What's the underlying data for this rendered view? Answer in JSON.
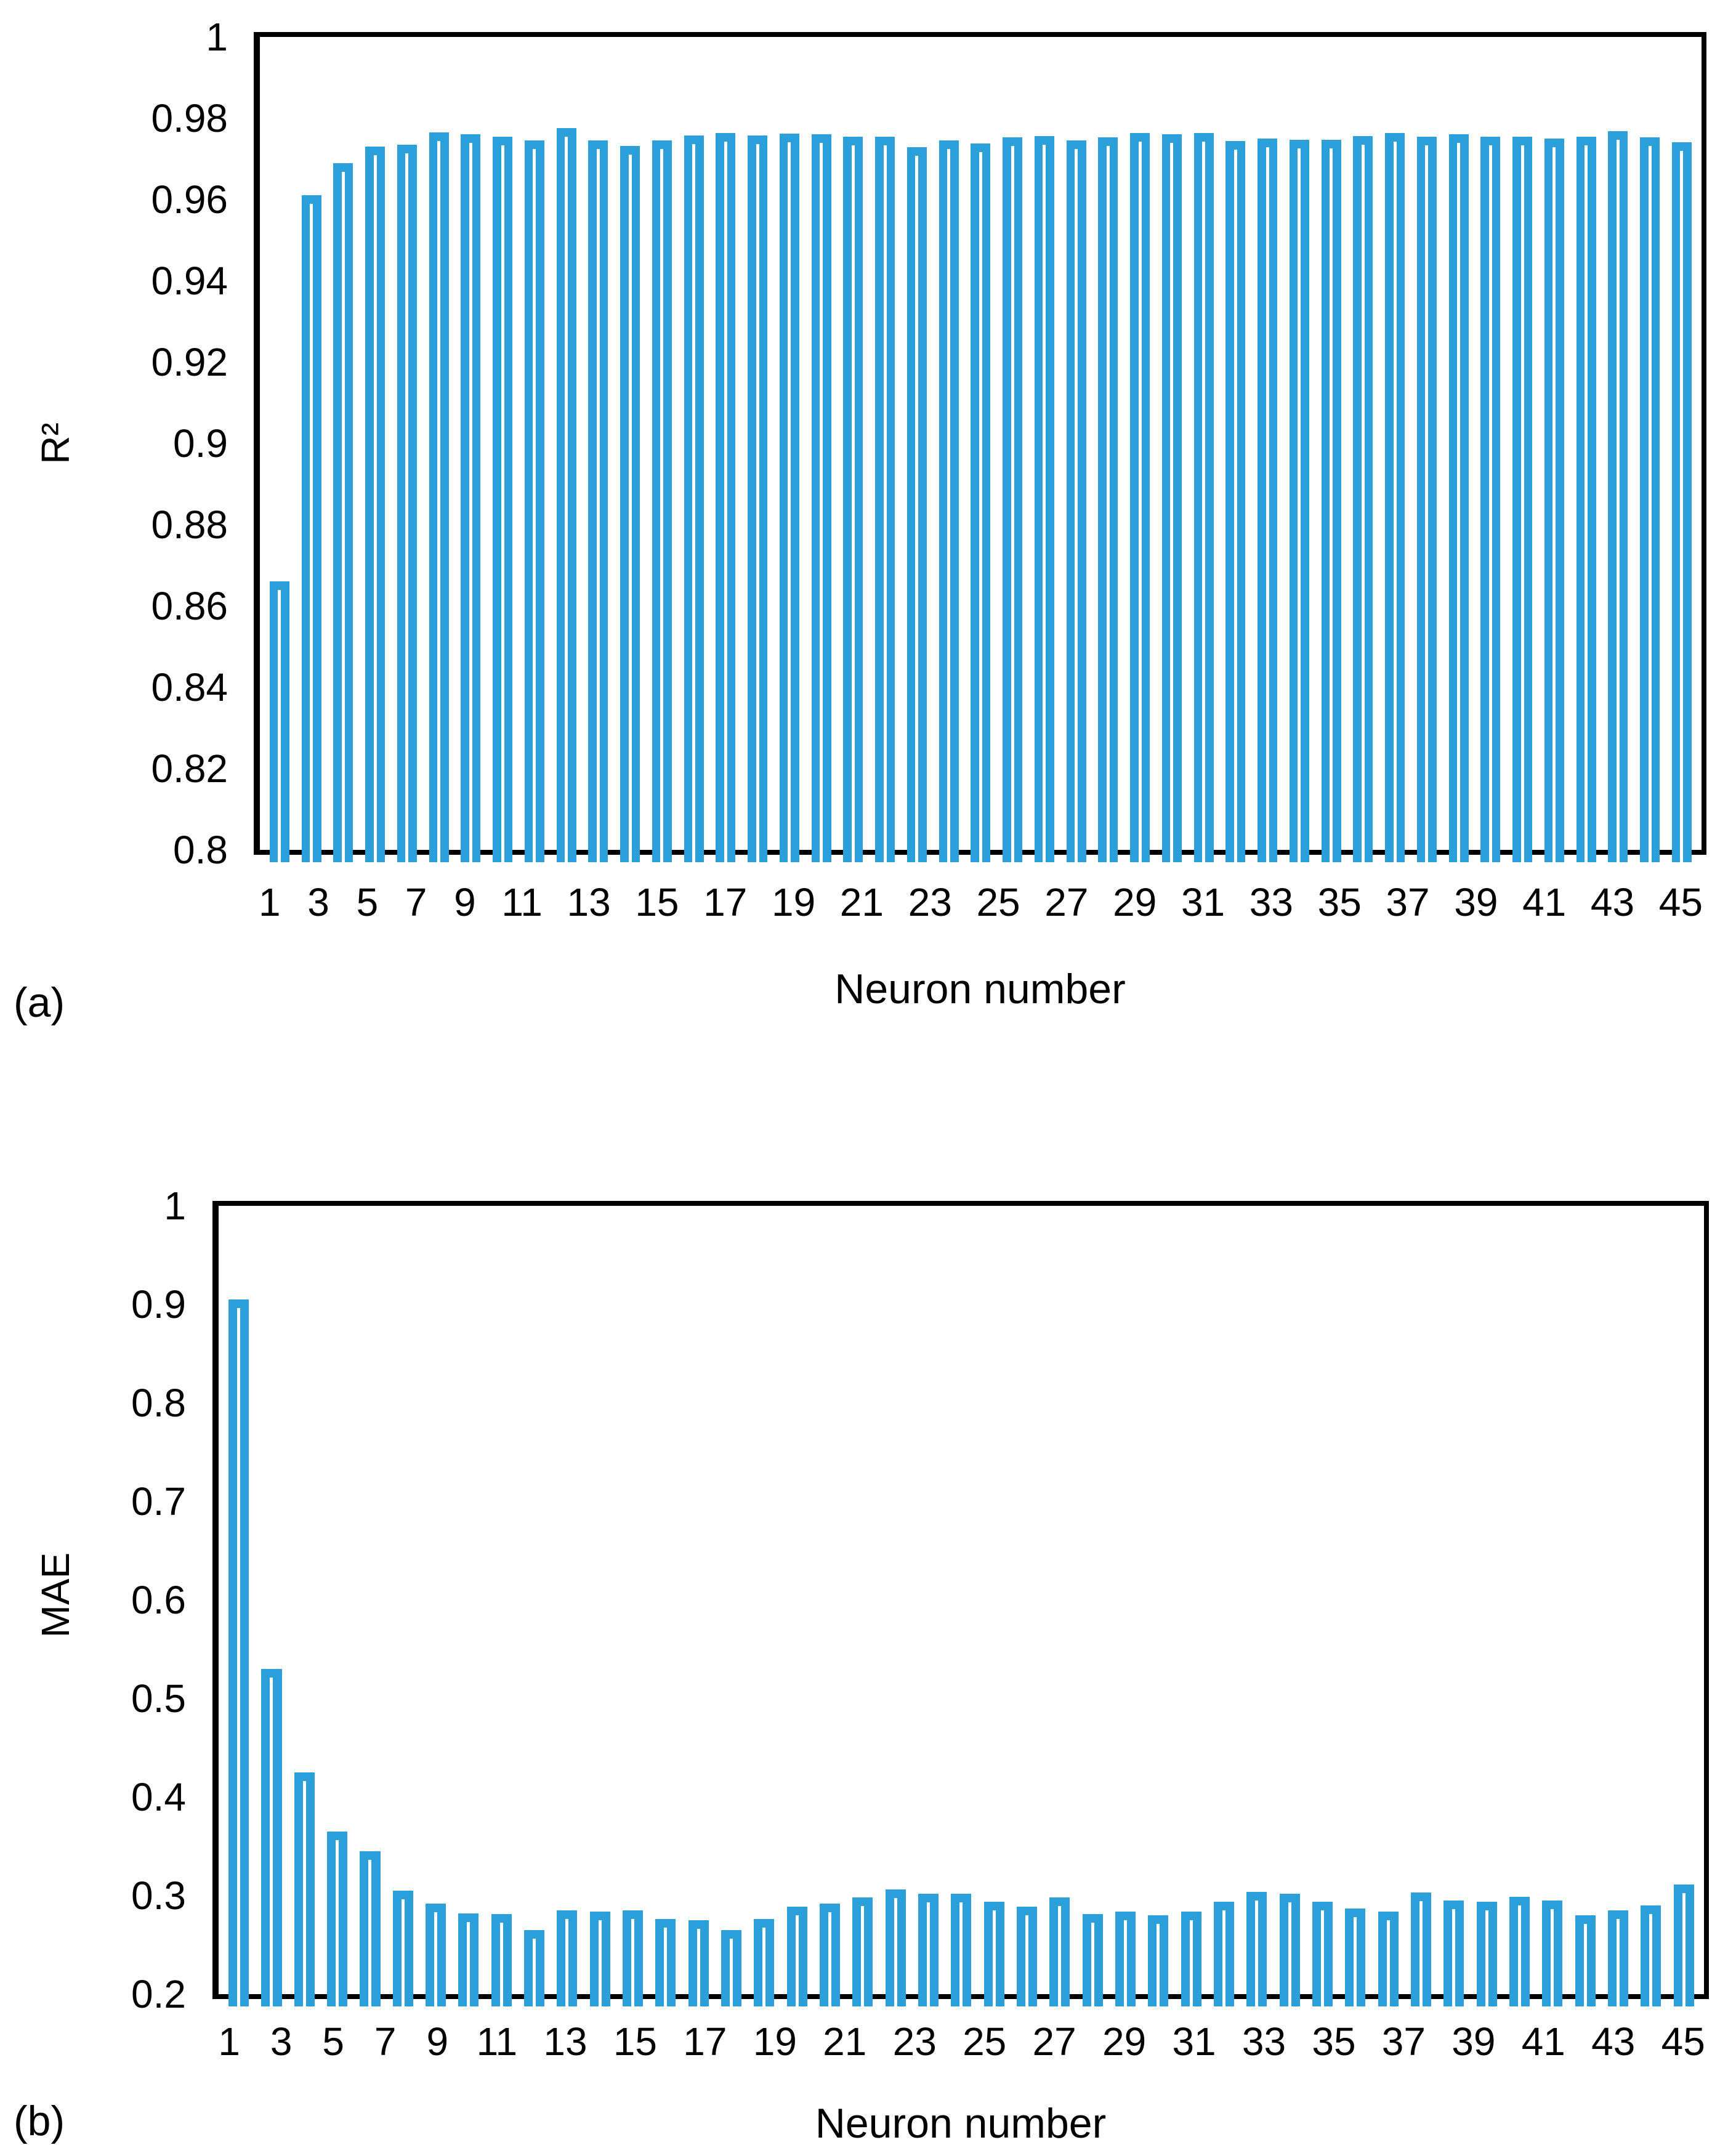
{
  "figure": {
    "panel_a_tag": "(a)",
    "panel_b_tag": "(b)",
    "bar_color": "#2B9FD9",
    "bar_stripe_color": "#FFFFFF",
    "axis_color": "#000000"
  },
  "chart_data": [
    {
      "type": "bar",
      "panel": "a",
      "title": "",
      "xlabel": "Neuron number",
      "ylabel": "R²",
      "ylim": [
        0.8,
        1.0
      ],
      "ytick_labels": [
        "1",
        "0.98",
        "0.96",
        "0.94",
        "0.92",
        "0.9",
        "0.88",
        "0.86",
        "0.84",
        "0.82",
        "0.8"
      ],
      "xtick_labels": [
        "1",
        "3",
        "5",
        "7",
        "9",
        "11",
        "13",
        "15",
        "17",
        "19",
        "21",
        "23",
        "25",
        "27",
        "29",
        "31",
        "33",
        "35",
        "37",
        "39",
        "41",
        "43",
        "45"
      ],
      "categories": [
        1,
        2,
        3,
        4,
        5,
        6,
        7,
        8,
        9,
        10,
        11,
        12,
        13,
        14,
        15,
        16,
        17,
        18,
        19,
        20,
        21,
        22,
        23,
        24,
        25,
        26,
        27,
        28,
        29,
        30,
        31,
        32,
        33,
        34,
        35,
        36,
        37,
        38,
        39,
        40,
        41,
        42,
        43,
        44,
        45
      ],
      "values": [
        0.866,
        0.961,
        0.969,
        0.973,
        0.9735,
        0.9765,
        0.976,
        0.9755,
        0.9745,
        0.9775,
        0.9745,
        0.9732,
        0.9745,
        0.9758,
        0.9763,
        0.9757,
        0.9762,
        0.9761,
        0.9755,
        0.9754,
        0.9729,
        0.9746,
        0.9738,
        0.9753,
        0.9756,
        0.9746,
        0.9753,
        0.9763,
        0.976,
        0.9764,
        0.9744,
        0.975,
        0.9747,
        0.9747,
        0.9756,
        0.9764,
        0.9755,
        0.976,
        0.9755,
        0.9754,
        0.975,
        0.9755,
        0.9768,
        0.9753,
        0.9741
      ],
      "grid": false,
      "legend": null
    },
    {
      "type": "bar",
      "panel": "b",
      "title": "",
      "xlabel": "Neuron number",
      "ylabel": "MAE",
      "ylim": [
        0.2,
        1.0
      ],
      "ytick_labels": [
        "1",
        "0.9",
        "0.8",
        "0.7",
        "0.6",
        "0.5",
        "0.4",
        "0.3",
        "0.2"
      ],
      "xtick_labels": [
        "1",
        "3",
        "5",
        "7",
        "9",
        "11",
        "13",
        "15",
        "17",
        "19",
        "21",
        "23",
        "25",
        "27",
        "29",
        "31",
        "33",
        "35",
        "37",
        "39",
        "41",
        "43",
        "45"
      ],
      "categories": [
        1,
        2,
        3,
        4,
        5,
        6,
        7,
        8,
        9,
        10,
        11,
        12,
        13,
        14,
        15,
        16,
        17,
        18,
        19,
        20,
        21,
        22,
        23,
        24,
        25,
        26,
        27,
        28,
        29,
        30,
        31,
        32,
        33,
        34,
        35,
        36,
        37,
        38,
        39,
        40,
        41,
        42,
        43,
        44,
        45
      ],
      "values": [
        0.905,
        0.53,
        0.425,
        0.365,
        0.345,
        0.305,
        0.292,
        0.282,
        0.281,
        0.265,
        0.285,
        0.284,
        0.285,
        0.276,
        0.275,
        0.265,
        0.276,
        0.289,
        0.292,
        0.298,
        0.306,
        0.302,
        0.302,
        0.294,
        0.289,
        0.298,
        0.281,
        0.284,
        0.28,
        0.284,
        0.294,
        0.304,
        0.302,
        0.294,
        0.287,
        0.284,
        0.303,
        0.295,
        0.294,
        0.299,
        0.295,
        0.28,
        0.285,
        0.29,
        0.311
      ],
      "grid": false,
      "legend": null
    }
  ]
}
